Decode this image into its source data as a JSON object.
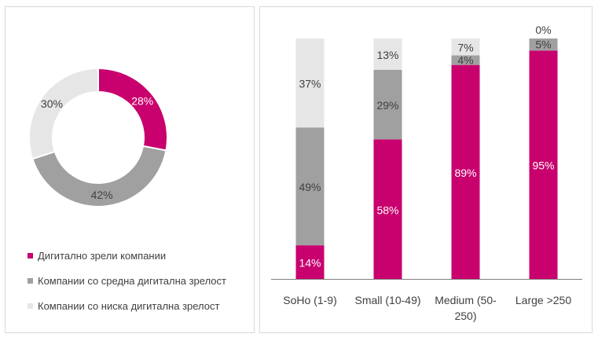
{
  "colors": {
    "mature": "#c8016e",
    "medium": "#a0a0a0",
    "low": "#e6e6e6",
    "axis": "#7f7f7f",
    "text_dark": "#404040",
    "text_light": "#ffffff"
  },
  "chart_data": [
    {
      "type": "pie",
      "variant": "donut",
      "title": "",
      "labels": [
        "Дигитално зрели компании",
        "Компании со средна дигитална зрелост",
        "Компании со ниска дигитална зрелост"
      ],
      "values": [
        28,
        42,
        30
      ],
      "value_labels": [
        "28%",
        "42%",
        "30%"
      ],
      "legend": {
        "position": "bottom",
        "entries": [
          "Дигитално зрели компании",
          "Компании со средна дигитална зрелост",
          "Компании со ниска дигитална зрелост"
        ]
      }
    },
    {
      "type": "bar",
      "stacked": true,
      "title": "",
      "xlabel": "",
      "ylabel": "",
      "ylim": [
        0,
        100
      ],
      "grid": false,
      "categories": [
        "SoHo (1-9)",
        "Small (10-49)",
        "Medium (50-250)",
        "Large >250"
      ],
      "category_label_lines": [
        [
          "SoHo (1-9)"
        ],
        [
          "Small (10-49)"
        ],
        [
          "Medium (50-",
          "250)"
        ],
        [
          "Large >250"
        ]
      ],
      "series": [
        {
          "values": [
            14,
            58,
            89,
            95
          ],
          "labels": [
            "14%",
            "58%",
            "89%",
            "95%"
          ]
        },
        {
          "values": [
            49,
            29,
            4,
            5
          ],
          "labels": [
            "49%",
            "29%",
            "4%",
            "5%"
          ]
        },
        {
          "values": [
            37,
            13,
            7,
            0
          ],
          "labels": [
            "37%",
            "13%",
            "7%",
            "0%"
          ]
        }
      ]
    }
  ]
}
